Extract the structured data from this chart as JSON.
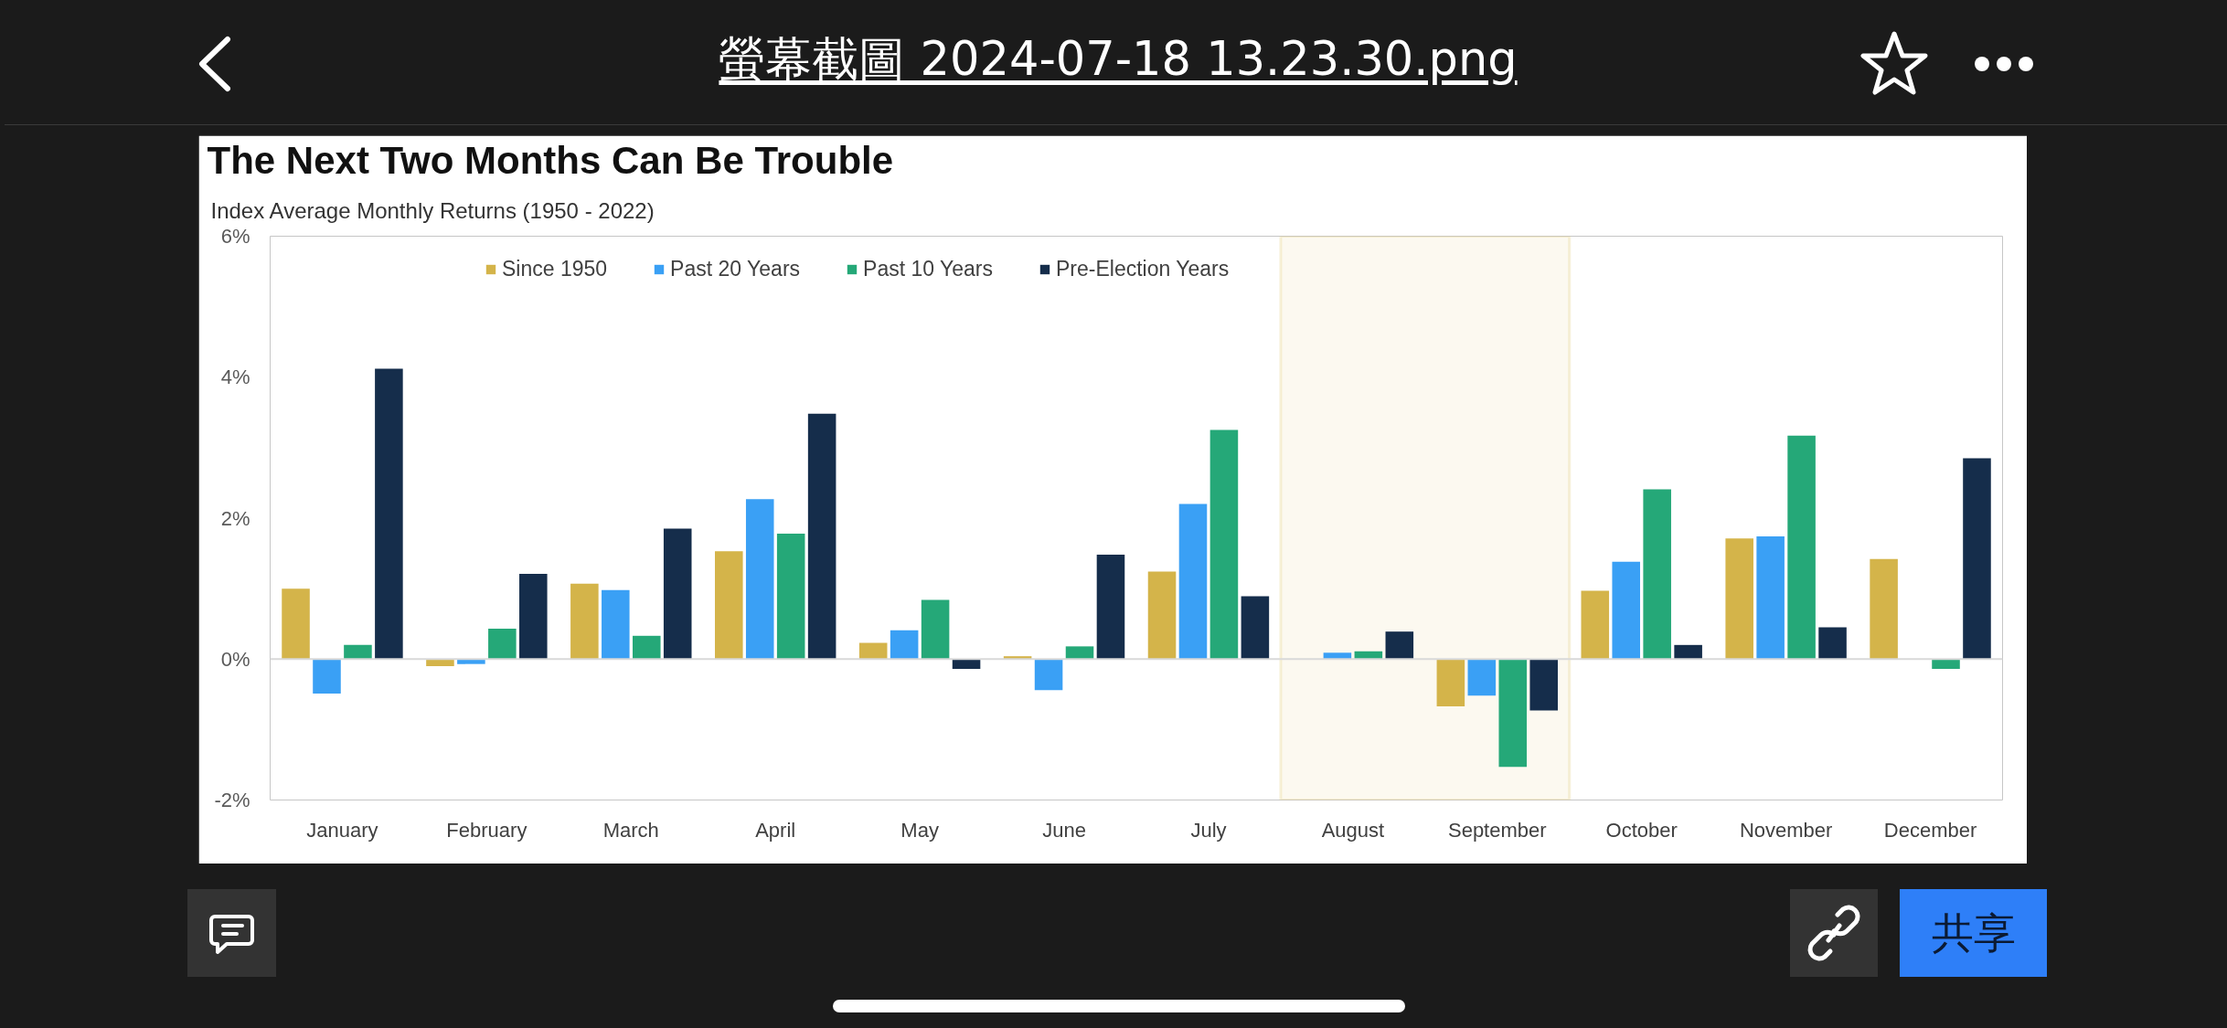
{
  "chart_data": {
    "type": "bar",
    "title": "The Next Two Months Can Be Trouble",
    "subtitle": "Index Average Monthly Returns (1950 - 2022)",
    "categories": [
      "January",
      "February",
      "March",
      "April",
      "May",
      "June",
      "July",
      "August",
      "September",
      "October",
      "November",
      "December"
    ],
    "series": [
      {
        "name": "Since 1950",
        "color": "#d4b44a",
        "values": [
          1.0,
          -0.1,
          1.07,
          1.53,
          0.23,
          0.04,
          1.24,
          null,
          -0.67,
          0.97,
          1.71,
          1.42
        ]
      },
      {
        "name": "Past 20 Years",
        "color": "#3aa0f5",
        "values": [
          -0.49,
          -0.07,
          0.98,
          2.27,
          0.41,
          -0.44,
          2.2,
          0.09,
          -0.52,
          1.38,
          1.74,
          null
        ]
      },
      {
        "name": "Past 10 Years",
        "color": "#25a878",
        "values": [
          0.2,
          0.43,
          0.33,
          1.78,
          0.84,
          0.18,
          3.25,
          0.11,
          -1.53,
          2.41,
          3.17,
          -0.14
        ]
      },
      {
        "name": "Pre-Election Years",
        "color": "#152d4b",
        "values": [
          4.12,
          1.21,
          1.85,
          3.48,
          -0.14,
          1.48,
          0.89,
          0.39,
          -0.73,
          0.2,
          0.45,
          2.85
        ]
      }
    ],
    "ylim": [
      -2,
      6
    ],
    "yticks": [
      {
        "value": -2,
        "label": "-2%"
      },
      {
        "value": 0,
        "label": "0%"
      },
      {
        "value": 2,
        "label": "2%"
      },
      {
        "value": 4,
        "label": "4%"
      },
      {
        "value": 6,
        "label": "6%"
      }
    ],
    "grid": false,
    "legend": "top",
    "ref_lines": [
      {
        "axis": "y",
        "value": 0,
        "color": "#d9d9d9"
      }
    ],
    "bands": [
      {
        "axis": "x",
        "from": "August",
        "to": "September",
        "color": "#e3cf85"
      }
    ],
    "annotations": [
      "螢幕截圖 2024-07-18 13.23.30.png",
      "共享"
    ]
  }
}
